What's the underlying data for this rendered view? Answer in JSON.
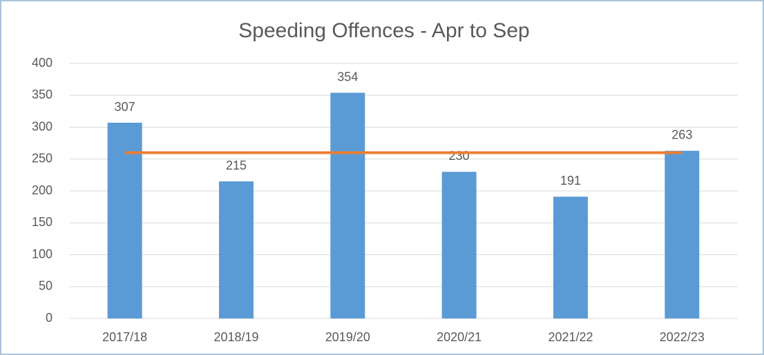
{
  "chart_data": {
    "type": "bar",
    "title": "Speeding Offences - Apr to Sep",
    "categories": [
      "2017/18",
      "2018/19",
      "2019/20",
      "2020/21",
      "2021/22",
      "2022/23"
    ],
    "series": [
      {
        "type": "bar",
        "color": "#5b9bd5",
        "values": [
          307,
          215,
          354,
          230,
          191,
          263
        ],
        "data_labels": true
      },
      {
        "type": "line",
        "color": "#ed7d31",
        "values": [
          260,
          260,
          260,
          260,
          260,
          260
        ]
      }
    ],
    "ylim": [
      0,
      400
    ],
    "yticks": [
      0,
      50,
      100,
      150,
      200,
      250,
      300,
      350,
      400
    ],
    "grid": true
  }
}
